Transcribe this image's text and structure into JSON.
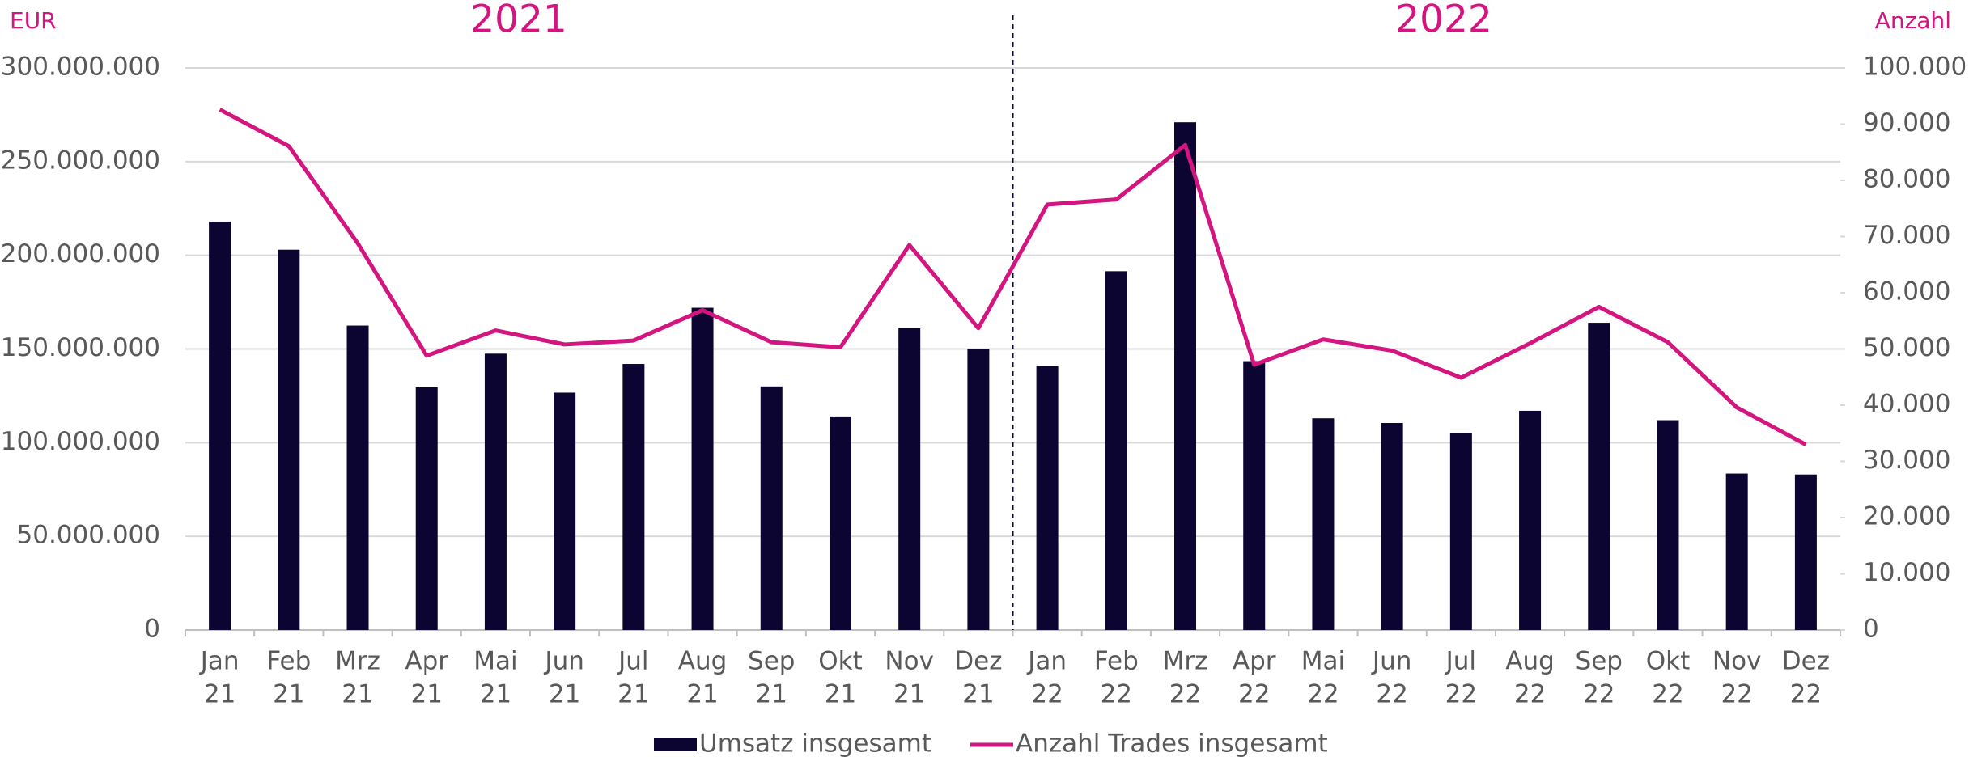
{
  "chart_data": {
    "type": "bar_line",
    "annotations": [
      "EUR",
      "Anzahl",
      "2021",
      "2022"
    ],
    "categories": [
      [
        "Jan",
        "21"
      ],
      [
        "Feb",
        "21"
      ],
      [
        "Mrz",
        "21"
      ],
      [
        "Apr",
        "21"
      ],
      [
        "Mai",
        "21"
      ],
      [
        "Jun",
        "21"
      ],
      [
        "Jul",
        "21"
      ],
      [
        "Aug",
        "21"
      ],
      [
        "Sep",
        "21"
      ],
      [
        "Okt",
        "21"
      ],
      [
        "Nov",
        "21"
      ],
      [
        "Dez",
        "21"
      ],
      [
        "Jan",
        "22"
      ],
      [
        "Feb",
        "22"
      ],
      [
        "Mrz",
        "22"
      ],
      [
        "Apr",
        "22"
      ],
      [
        "Mai",
        "22"
      ],
      [
        "Jun",
        "22"
      ],
      [
        "Jul",
        "22"
      ],
      [
        "Aug",
        "22"
      ],
      [
        "Sep",
        "22"
      ],
      [
        "Okt",
        "22"
      ],
      [
        "Nov",
        "22"
      ],
      [
        "Dez",
        "22"
      ]
    ],
    "series": [
      {
        "name": "Umsatz insgesamt",
        "type": "bar",
        "color": "#0c0531",
        "values": [
          218000000,
          203000000,
          162500000,
          129500000,
          147500000,
          126700000,
          142000000,
          172000000,
          130000000,
          114000000,
          161000000,
          150000000,
          141000000,
          191500000,
          271000000,
          143500000,
          113000000,
          110500000,
          105000000,
          117000000,
          164000000,
          112000000,
          83500000,
          83000000
        ]
      },
      {
        "name": "Anzahl Trades insgesamt",
        "type": "line",
        "axis": "y2",
        "color": "#d4147f",
        "values": [
          92600,
          86100,
          68800,
          48800,
          53300,
          50800,
          51500,
          56900,
          51200,
          50300,
          68500,
          53700,
          75700,
          76600,
          86300,
          47200,
          51700,
          49700,
          44900,
          51000,
          57500,
          51200,
          39600,
          33000
        ]
      }
    ],
    "ylim": [
      0,
      300000000
    ],
    "yticks": [
      0,
      {
        "value": 50000000,
        "label": "50.000.000"
      },
      {
        "value": 100000000,
        "label": "100.000.000"
      },
      {
        "value": 150000000,
        "label": "150.000.000"
      },
      {
        "value": 200000000,
        "label": "200.000.000"
      },
      {
        "value": 250000000,
        "label": "250.000.000"
      },
      {
        "value": 300000000,
        "label": "300.000.000"
      }
    ],
    "y2lim": [
      0,
      100000
    ],
    "y2ticks": [
      0,
      {
        "value": 10000,
        "label": "10.000"
      },
      {
        "value": 20000,
        "label": "20.000"
      },
      {
        "value": 30000,
        "label": "30.000"
      },
      {
        "value": 40000,
        "label": "40.000"
      },
      {
        "value": 50000,
        "label": "50.000"
      },
      {
        "value": 60000,
        "label": "60.000"
      },
      {
        "value": 70000,
        "label": "70.000"
      },
      {
        "value": 80000,
        "label": "80.000"
      },
      {
        "value": 90000,
        "label": "90.000"
      },
      {
        "value": 100000,
        "label": "100.000"
      }
    ],
    "grid": true,
    "legend": "bottom"
  }
}
